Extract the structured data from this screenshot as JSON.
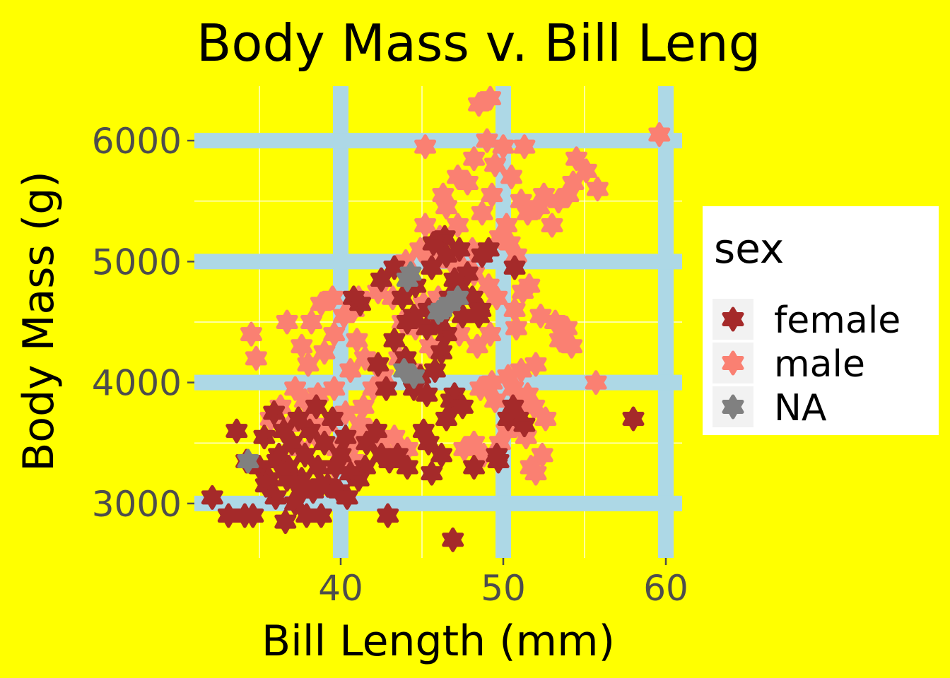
{
  "chart_data": {
    "type": "scatter",
    "title": "Body Mass v. Bill Leng",
    "xlabel": "Bill Length (mm)",
    "ylabel": "Body Mass (g)",
    "xlim": [
      31,
      61
    ],
    "ylim": [
      2550,
      6450
    ],
    "x_ticks": [
      "40",
      "50",
      "60"
    ],
    "y_ticks": [
      "3000",
      "4000",
      "5000",
      "6000"
    ],
    "grid": true,
    "legend": {
      "title": "sex",
      "position": "right",
      "entries": [
        {
          "label": "female",
          "color": "#A52A2A"
        },
        {
          "label": "male",
          "color": "#FA8072"
        },
        {
          "label": "NA",
          "color": "#808080"
        }
      ]
    },
    "colors": {
      "background": "#FFFF00",
      "major_grid": "#ADD8E6",
      "minor_grid": "#FFFFFF",
      "female": "#A52A2A",
      "male": "#FA8072",
      "NA": "#808080"
    },
    "series": [
      {
        "name": "male",
        "points": [
          [
            48.5,
            6300
          ],
          [
            49.2,
            6350
          ],
          [
            59.6,
            6050
          ],
          [
            45.2,
            5950
          ],
          [
            49.0,
            6000
          ],
          [
            50.0,
            5950
          ],
          [
            51.3,
            5950
          ],
          [
            48.2,
            5850
          ],
          [
            49.5,
            5800
          ],
          [
            50.5,
            5700
          ],
          [
            54.3,
            5650
          ],
          [
            55.8,
            5600
          ],
          [
            53.4,
            5500
          ],
          [
            47.8,
            5650
          ],
          [
            48.7,
            5400
          ],
          [
            49.3,
            5550
          ],
          [
            51.1,
            5500
          ],
          [
            52.5,
            5550
          ],
          [
            46.5,
            5450
          ],
          [
            47.2,
            5300
          ],
          [
            50.2,
            5300
          ],
          [
            51.5,
            5400
          ],
          [
            52.2,
            5450
          ],
          [
            53.0,
            5300
          ],
          [
            54.5,
            5850
          ],
          [
            55.1,
            5750
          ],
          [
            54.0,
            5550
          ],
          [
            45.2,
            5300
          ],
          [
            46.1,
            5200
          ],
          [
            48.1,
            5100
          ],
          [
            49.8,
            5200
          ],
          [
            50.4,
            5150
          ],
          [
            44.0,
            5000
          ],
          [
            44.9,
            5100
          ],
          [
            45.5,
            5050
          ],
          [
            46.8,
            5000
          ],
          [
            47.5,
            4950
          ],
          [
            48.2,
            4900
          ],
          [
            49.1,
            4800
          ],
          [
            49.6,
            4700
          ],
          [
            46.0,
            4700
          ],
          [
            45.1,
            4650
          ],
          [
            44.5,
            4550
          ],
          [
            43.8,
            4500
          ],
          [
            42.3,
            4750
          ],
          [
            43.2,
            4700
          ],
          [
            41.1,
            4700
          ],
          [
            40.8,
            4600
          ],
          [
            39.5,
            4700
          ],
          [
            38.8,
            4650
          ],
          [
            38.2,
            4500
          ],
          [
            37.6,
            4300
          ],
          [
            38.0,
            4150
          ],
          [
            39.0,
            4250
          ],
          [
            39.6,
            4400
          ],
          [
            40.2,
            4550
          ],
          [
            41.0,
            4350
          ],
          [
            41.5,
            4200
          ],
          [
            40.6,
            4100
          ],
          [
            39.6,
            3950
          ],
          [
            38.6,
            3900
          ],
          [
            37.8,
            3850
          ],
          [
            37.2,
            3950
          ],
          [
            36.3,
            3800
          ],
          [
            35.7,
            3700
          ],
          [
            36.9,
            3650
          ],
          [
            38.1,
            3700
          ],
          [
            39.2,
            3650
          ],
          [
            40.3,
            3750
          ],
          [
            41.4,
            3800
          ],
          [
            42.0,
            3950
          ],
          [
            41.8,
            3600
          ],
          [
            40.9,
            3500
          ],
          [
            39.8,
            3450
          ],
          [
            38.5,
            3550
          ],
          [
            37.5,
            3450
          ],
          [
            39.6,
            3300
          ],
          [
            40.8,
            3350
          ],
          [
            42.5,
            3500
          ],
          [
            43.3,
            3550
          ],
          [
            44.1,
            3450
          ],
          [
            41.2,
            3650
          ],
          [
            42.6,
            4050
          ],
          [
            43.6,
            4200
          ],
          [
            44.4,
            4100
          ],
          [
            45.5,
            4300
          ],
          [
            44.6,
            4450
          ],
          [
            47.3,
            4400
          ],
          [
            48.4,
            4300
          ],
          [
            49.2,
            4400
          ],
          [
            50.8,
            4450
          ],
          [
            51.6,
            4800
          ],
          [
            52.3,
            4550
          ],
          [
            53.2,
            4500
          ],
          [
            53.9,
            4450
          ],
          [
            53.5,
            4350
          ],
          [
            54.2,
            4300
          ],
          [
            55.7,
            4000
          ],
          [
            50.3,
            4050
          ],
          [
            51.1,
            4100
          ],
          [
            52.0,
            4150
          ],
          [
            51.5,
            3900
          ],
          [
            50.9,
            3800
          ],
          [
            49.5,
            3850
          ],
          [
            48.6,
            3950
          ],
          [
            49.3,
            4000
          ],
          [
            50.6,
            3950
          ],
          [
            51.9,
            3800
          ],
          [
            52.6,
            3700
          ],
          [
            51.4,
            3550
          ],
          [
            50.2,
            3600
          ],
          [
            49.8,
            3500
          ],
          [
            51.7,
            3300
          ],
          [
            52.4,
            3400
          ],
          [
            52.0,
            3250
          ],
          [
            48.8,
            3400
          ],
          [
            48.2,
            3500
          ],
          [
            47.6,
            3450
          ],
          [
            34.5,
            4400
          ],
          [
            34.8,
            4200
          ],
          [
            36.7,
            4500
          ],
          [
            50.7,
            4600
          ],
          [
            47.2,
            5700
          ],
          [
            46.3,
            5550
          ],
          [
            50.8,
            5050
          ],
          [
            51.2,
            4750
          ]
        ]
      },
      {
        "name": "female",
        "points": [
          [
            32.1,
            3050
          ],
          [
            33.1,
            2900
          ],
          [
            33.6,
            3600
          ],
          [
            34.1,
            2900
          ],
          [
            34.6,
            2900
          ],
          [
            35.0,
            3300
          ],
          [
            35.3,
            3550
          ],
          [
            35.6,
            3200
          ],
          [
            35.9,
            3750
          ],
          [
            36.0,
            3050
          ],
          [
            36.2,
            3400
          ],
          [
            36.5,
            3600
          ],
          [
            36.6,
            2850
          ],
          [
            36.8,
            3300
          ],
          [
            37.0,
            3500
          ],
          [
            37.2,
            3000
          ],
          [
            37.4,
            3700
          ],
          [
            37.6,
            3200
          ],
          [
            37.8,
            3400
          ],
          [
            37.9,
            2900
          ],
          [
            38.1,
            3600
          ],
          [
            38.3,
            3100
          ],
          [
            38.5,
            3800
          ],
          [
            38.6,
            3300
          ],
          [
            38.8,
            2900
          ],
          [
            39.0,
            3500
          ],
          [
            39.2,
            3150
          ],
          [
            39.5,
            3700
          ],
          [
            39.7,
            3300
          ],
          [
            40.0,
            3400
          ],
          [
            40.3,
            3550
          ],
          [
            40.6,
            3250
          ],
          [
            41.1,
            3200
          ],
          [
            41.5,
            3300
          ],
          [
            42.2,
            3600
          ],
          [
            42.5,
            3400
          ],
          [
            43.0,
            3350
          ],
          [
            43.5,
            3400
          ],
          [
            44.1,
            3300
          ],
          [
            45.1,
            3600
          ],
          [
            45.4,
            3500
          ],
          [
            45.6,
            3250
          ],
          [
            46.2,
            3400
          ],
          [
            46.5,
            3700
          ],
          [
            46.8,
            3850
          ],
          [
            47.0,
            3900
          ],
          [
            47.5,
            3800
          ],
          [
            48.2,
            3300
          ],
          [
            49.7,
            3350
          ],
          [
            50.3,
            3700
          ],
          [
            50.9,
            3700
          ],
          [
            51.3,
            3650
          ],
          [
            50.6,
            3800
          ],
          [
            49.6,
            3400
          ],
          [
            42.3,
            4150
          ],
          [
            42.8,
            3950
          ],
          [
            42.9,
            2900
          ],
          [
            44.5,
            3950
          ],
          [
            45.3,
            3900
          ],
          [
            44.9,
            4050
          ],
          [
            45.8,
            4100
          ],
          [
            46.2,
            4250
          ],
          [
            46.5,
            4400
          ],
          [
            45.4,
            4600
          ],
          [
            44.6,
            4800
          ],
          [
            43.3,
            4950
          ],
          [
            42.5,
            4850
          ],
          [
            41.2,
            4650
          ],
          [
            40.8,
            4700
          ],
          [
            43.8,
            4700
          ],
          [
            44.5,
            4550
          ],
          [
            45.3,
            4450
          ],
          [
            46.1,
            4500
          ],
          [
            46.7,
            4700
          ],
          [
            47.3,
            4800
          ],
          [
            47.8,
            4900
          ],
          [
            48.1,
            4700
          ],
          [
            48.5,
            4550
          ],
          [
            48.7,
            5050
          ],
          [
            49.1,
            5100
          ],
          [
            50.7,
            4950
          ],
          [
            46.4,
            5200
          ],
          [
            45.7,
            5150
          ],
          [
            47.3,
            5100
          ],
          [
            46.5,
            5050
          ],
          [
            45.6,
            4950
          ],
          [
            47.0,
            4850
          ],
          [
            47.5,
            4550
          ],
          [
            48.6,
            4600
          ],
          [
            44.1,
            4500
          ],
          [
            43.3,
            4350
          ],
          [
            44.0,
            4200
          ],
          [
            46.9,
            2700
          ],
          [
            58.0,
            3700
          ],
          [
            36.7,
            3200
          ],
          [
            38.8,
            3150
          ],
          [
            39.9,
            3100
          ],
          [
            40.4,
            3050
          ],
          [
            36.1,
            3350
          ],
          [
            37.5,
            3100
          ],
          [
            34.2,
            3350
          ],
          [
            35.4,
            3150
          ],
          [
            41.6,
            3500
          ]
        ]
      },
      {
        "name": "NA",
        "points": [
          [
            44.1,
            4850
          ],
          [
            44.3,
            4900
          ],
          [
            47.2,
            4700
          ],
          [
            46.7,
            4650
          ],
          [
            46.2,
            4600
          ],
          [
            43.9,
            4100
          ],
          [
            44.5,
            4050
          ],
          [
            46.0,
            4580
          ],
          [
            34.3,
            3350
          ]
        ]
      }
    ]
  }
}
